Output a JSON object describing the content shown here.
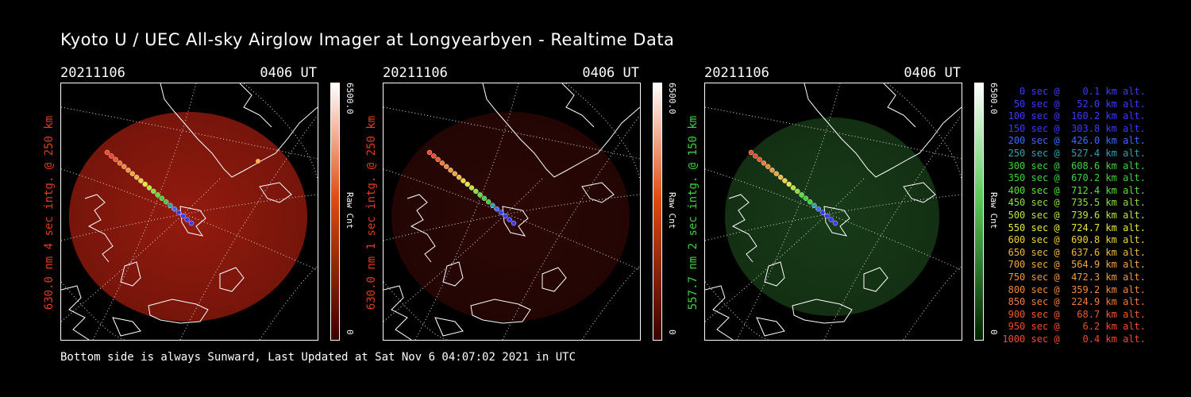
{
  "title": "Kyoto U / UEC All-sky Airglow Imager at Longyearbyen - Realtime Data",
  "panels": [
    {
      "date": "20211106",
      "time": "0406 UT",
      "ylabel": "630.0 nm  4 sec intg. @ 250 km",
      "label_color": "#e23b1a",
      "cbar_max": "6500.0",
      "cbar_unit": "Raw Cnt",
      "cbar_min": "0",
      "cbar_top": "#ffffff",
      "cbar_mid": "#e04a10",
      "cbar_low": "#3a0000",
      "glow_color": "#a81e10",
      "glow_opacity": 0.88
    },
    {
      "date": "20211106",
      "time": "0406 UT",
      "ylabel": "630.0 nm  1 sec intg. @ 250 km",
      "label_color": "#e23b1a",
      "cbar_max": "6500.0",
      "cbar_unit": "Raw Cnt",
      "cbar_min": "0",
      "cbar_top": "#ffffff",
      "cbar_mid": "#e04a10",
      "cbar_low": "#3a0000",
      "glow_color": "#3a0a06",
      "glow_opacity": 0.75
    },
    {
      "date": "20211106",
      "time": "0406 UT",
      "ylabel": "557.7 nm  2 sec intg. @ 150 km",
      "label_color": "#3ed13e",
      "cbar_max": "6500.0",
      "cbar_unit": "Raw Cnt",
      "cbar_min": "0",
      "cbar_top": "#ffffff",
      "cbar_mid": "#5ac85a",
      "cbar_low": "#002200",
      "glow_color": "#1e4a1e",
      "glow_opacity": 0.8
    }
  ],
  "footer": "Bottom side is always Sunward, Last Updated at Sat Nov  6 04:07:02 2021 in UTC",
  "legend": [
    {
      "text": "   0 sec @    0.1 km alt.",
      "color": "#3a3aff"
    },
    {
      "text": "  50 sec @   52.0 km alt.",
      "color": "#3a3aff"
    },
    {
      "text": " 100 sec @  160.2 km alt.",
      "color": "#3a3aff"
    },
    {
      "text": " 150 sec @  303.8 km alt.",
      "color": "#3a3aff"
    },
    {
      "text": " 200 sec @  426.0 km alt.",
      "color": "#3a6aff"
    },
    {
      "text": " 250 sec @  527.4 km alt.",
      "color": "#2aa3b0"
    },
    {
      "text": " 300 sec @  608.6 km alt.",
      "color": "#3ed13e"
    },
    {
      "text": " 350 sec @  670.2 km alt.",
      "color": "#3ed13e"
    },
    {
      "text": " 400 sec @  712.4 km alt.",
      "color": "#5ae03a"
    },
    {
      "text": " 450 sec @  735.5 km alt.",
      "color": "#8ae03a"
    },
    {
      "text": " 500 sec @  739.6 km alt.",
      "color": "#b8e83a"
    },
    {
      "text": " 550 sec @  724.7 km alt.",
      "color": "#e8e83a"
    },
    {
      "text": " 600 sec @  690.8 km alt.",
      "color": "#f0d23a"
    },
    {
      "text": " 650 sec @  637.6 km alt.",
      "color": "#f0b83a"
    },
    {
      "text": " 700 sec @  564.9 km alt.",
      "color": "#f0a83a"
    },
    {
      "text": " 750 sec @  472.3 km alt.",
      "color": "#f0983a"
    },
    {
      "text": " 800 sec @  359.2 km alt.",
      "color": "#f08a3a"
    },
    {
      "text": " 850 sec @  224.9 km alt.",
      "color": "#f07a3a"
    },
    {
      "text": " 900 sec @   68.7 km alt.",
      "color": "#f05a2a"
    },
    {
      "text": " 950 sec @    6.2 km alt.",
      "color": "#f04a2a"
    },
    {
      "text": "1000 sec @    0.4 km alt.",
      "color": "#f04a2a"
    }
  ]
}
